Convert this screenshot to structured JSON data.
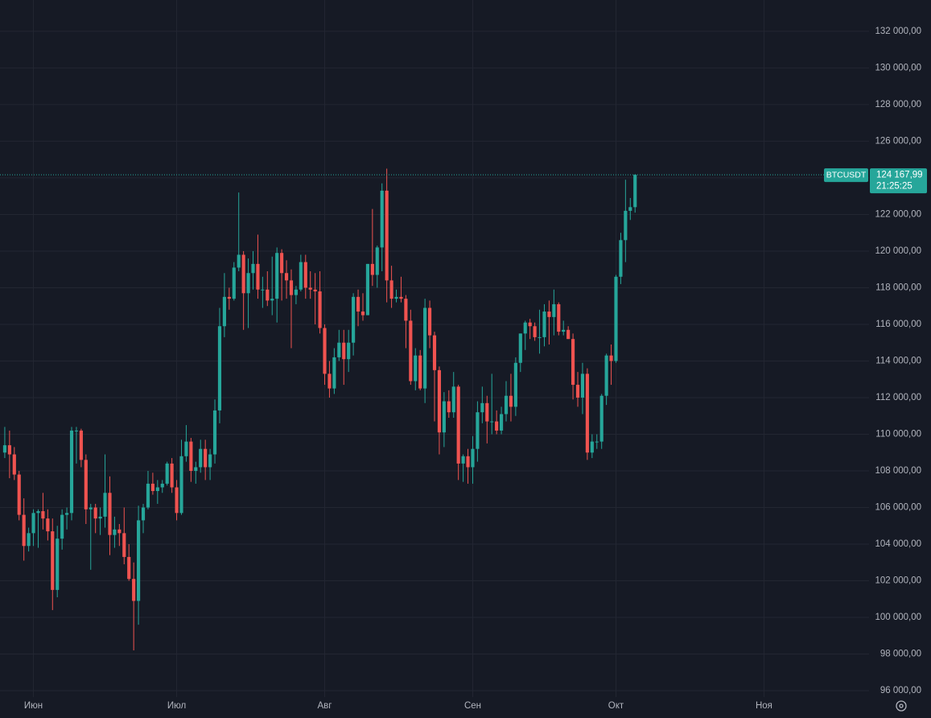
{
  "chart_data": {
    "type": "candlestick",
    "symbol": "BTCUSDT",
    "countdown": "21:25:25",
    "last_price": {
      "value": 124167.99,
      "label": "124 167,99"
    },
    "up_color": "#26a69a",
    "down_color": "#ef5350",
    "grid": true,
    "xlim": [
      -1,
      181
    ],
    "xticks": [
      {
        "value": 6,
        "label": "Июн"
      },
      {
        "value": 36,
        "label": "Июл"
      },
      {
        "value": 67,
        "label": "Авг"
      },
      {
        "value": 98,
        "label": "Сен"
      },
      {
        "value": 128,
        "label": "Окт"
      },
      {
        "value": 159,
        "label": "Ноя"
      }
    ],
    "ylim": [
      95650,
      133710
    ],
    "yticks": [
      {
        "value": 96000,
        "label": "96 000,00"
      },
      {
        "value": 98000,
        "label": "98 000,00"
      },
      {
        "value": 100000,
        "label": "100 000,00"
      },
      {
        "value": 102000,
        "label": "102 000,00"
      },
      {
        "value": 104000,
        "label": "104 000,00"
      },
      {
        "value": 106000,
        "label": "106 000,00"
      },
      {
        "value": 108000,
        "label": "108 000,00"
      },
      {
        "value": 110000,
        "label": "110 000,00"
      },
      {
        "value": 112000,
        "label": "112 000,00"
      },
      {
        "value": 114000,
        "label": "114 000,00"
      },
      {
        "value": 116000,
        "label": "116 000,00"
      },
      {
        "value": 118000,
        "label": "118 000,00"
      },
      {
        "value": 120000,
        "label": "120 000,00"
      },
      {
        "value": 122000,
        "label": "122 000,00"
      },
      {
        "value": 124000,
        "label": "124 000,00"
      },
      {
        "value": 126000,
        "label": "126 000,00"
      },
      {
        "value": 128000,
        "label": "128 000,00"
      },
      {
        "value": 130000,
        "label": "130 000,00"
      },
      {
        "value": 132000,
        "label": "132 000,00"
      }
    ],
    "open": [
      109000,
      109400,
      108900,
      107800,
      105600,
      103900,
      104600,
      105700,
      105800,
      105400,
      104700,
      101500,
      104300,
      105600,
      105700,
      110200,
      110200,
      108600,
      105900,
      106000,
      105400,
      105500,
      106800,
      104500,
      104800,
      104600,
      103300,
      102100,
      100900,
      105300,
      106000,
      107300,
      106900,
      107100,
      107300,
      108400,
      107100,
      105700,
      108800,
      109600,
      108000,
      108200,
      109200,
      108200,
      108900,
      111300,
      115900,
      117500,
      117400,
      119100,
      119800,
      117700,
      118800,
      119300,
      117900,
      117900,
      117300,
      117400,
      119900,
      118800,
      118400,
      117600,
      117900,
      119400,
      118000,
      117900,
      117800,
      115800,
      113300,
      112500,
      114200,
      115000,
      114100,
      115000,
      117500,
      116700,
      116500,
      119300,
      118700,
      120200,
      123300,
      118400,
      117400,
      117500,
      117400,
      116200,
      112900,
      114300,
      112500,
      116900,
      115400,
      113500,
      110100,
      111800,
      111200,
      112600,
      108400,
      108800,
      108200,
      109200,
      111200,
      111700,
      110700,
      110700,
      110200,
      111100,
      112100,
      111500,
      113900,
      115500,
      116100,
      115900,
      115300,
      115300,
      116700,
      116400,
      117100,
      115600,
      115700,
      115200,
      112700,
      112000,
      113300,
      109000,
      109600,
      109600,
      112100,
      114300,
      114000,
      118600,
      120600,
      122200,
      122400
    ],
    "high": [
      110400,
      110200,
      109300,
      108000,
      106500,
      104900,
      105900,
      105900,
      106800,
      105900,
      105400,
      105000,
      105900,
      106000,
      110400,
      110400,
      110300,
      108900,
      106200,
      106200,
      106000,
      108900,
      107700,
      105500,
      105100,
      106000,
      104000,
      103000,
      106100,
      106200,
      108000,
      107900,
      107500,
      107500,
      108500,
      108700,
      107500,
      109700,
      110500,
      109800,
      108500,
      109700,
      109700,
      109200,
      111900,
      116900,
      118800,
      118000,
      119400,
      123200,
      120000,
      119600,
      120000,
      120900,
      118600,
      118900,
      119700,
      120200,
      120100,
      119500,
      119000,
      118100,
      119800,
      119800,
      118900,
      118800,
      118900,
      116000,
      114000,
      114700,
      115700,
      115700,
      115700,
      117700,
      117900,
      117700,
      119300,
      122300,
      120300,
      123700,
      124500,
      119200,
      117900,
      118600,
      117600,
      116800,
      114700,
      114600,
      117400,
      117300,
      115600,
      113700,
      112300,
      112400,
      113400,
      112700,
      108900,
      109200,
      109900,
      111800,
      112600,
      112100,
      113300,
      111300,
      111500,
      112900,
      113300,
      114200,
      115500,
      116200,
      116300,
      116100,
      116800,
      117100,
      117300,
      117900,
      117200,
      116200,
      115900,
      115500,
      113400,
      113900,
      113600,
      110000,
      110000,
      112200,
      114400,
      114900,
      118700,
      121000,
      123900,
      122900,
      124200
    ],
    "low": [
      108700,
      107600,
      107500,
      105300,
      103100,
      103600,
      103900,
      103800,
      104800,
      104200,
      100400,
      101100,
      103700,
      104800,
      105300,
      108400,
      108200,
      105100,
      102600,
      104600,
      104500,
      104900,
      103400,
      103800,
      103900,
      102900,
      102000,
      98200,
      99600,
      104600,
      105900,
      106700,
      106200,
      106800,
      107200,
      106800,
      105300,
      105600,
      108500,
      107400,
      107300,
      107900,
      107500,
      107500,
      108400,
      110600,
      115300,
      116800,
      117300,
      118900,
      115700,
      115800,
      117900,
      117400,
      116900,
      117000,
      116500,
      116100,
      117300,
      117400,
      114700,
      117100,
      117800,
      117400,
      117400,
      116000,
      115500,
      112700,
      112000,
      112200,
      114000,
      112700,
      113400,
      114300,
      115900,
      116200,
      116500,
      118100,
      118000,
      118900,
      117200,
      116900,
      117200,
      117200,
      114700,
      112700,
      112400,
      112400,
      111700,
      114700,
      110700,
      108900,
      109300,
      110900,
      110900,
      107500,
      107400,
      107300,
      107300,
      108500,
      110600,
      109500,
      110000,
      110000,
      110000,
      110700,
      110700,
      111000,
      113400,
      114600,
      115200,
      115100,
      114400,
      114800,
      114900,
      115400,
      115400,
      115400,
      115200,
      111900,
      111500,
      111100,
      108600,
      108700,
      109200,
      109200,
      111600,
      112700,
      113900,
      118200,
      119400,
      121700,
      122100
    ],
    "close": [
      109400,
      108900,
      107800,
      105600,
      103900,
      104600,
      105700,
      105800,
      105400,
      104700,
      101500,
      104300,
      105600,
      105700,
      110200,
      110200,
      108600,
      105900,
      106000,
      105400,
      105500,
      106800,
      104500,
      104800,
      104600,
      103300,
      102100,
      100900,
      105300,
      106000,
      107300,
      106900,
      107100,
      107300,
      108400,
      107100,
      105700,
      108800,
      109600,
      108000,
      108200,
      109200,
      108200,
      108900,
      111300,
      115900,
      117500,
      117400,
      119100,
      119800,
      117700,
      118800,
      119300,
      117900,
      117900,
      117300,
      117400,
      119900,
      118800,
      118400,
      117600,
      117900,
      119400,
      118000,
      117900,
      117800,
      115800,
      113300,
      112500,
      114200,
      115000,
      114100,
      115000,
      117500,
      116700,
      116500,
      119300,
      118700,
      120200,
      123300,
      118400,
      117400,
      117500,
      117400,
      116200,
      112900,
      114300,
      112500,
      116900,
      115400,
      113500,
      110100,
      111800,
      111200,
      112600,
      108400,
      108800,
      108200,
      109200,
      111200,
      111700,
      110700,
      110700,
      110200,
      111100,
      112100,
      111500,
      113900,
      115500,
      116100,
      115900,
      115300,
      115300,
      116700,
      116400,
      117100,
      115600,
      115700,
      115200,
      112700,
      112000,
      113300,
      109000,
      109600,
      109600,
      112100,
      114300,
      114000,
      118600,
      120600,
      122200,
      122400,
      124167.99
    ]
  }
}
